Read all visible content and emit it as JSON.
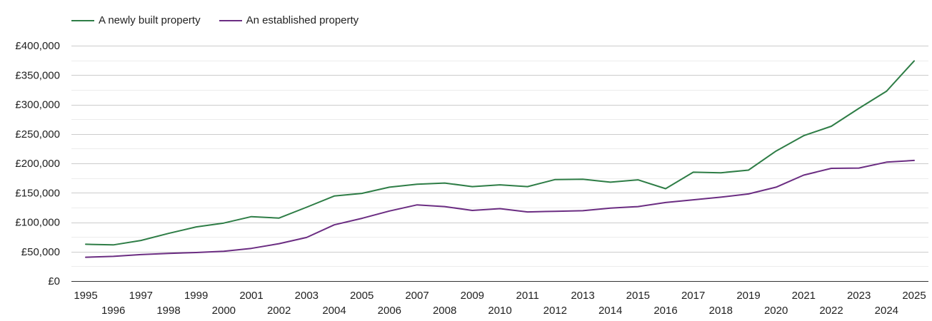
{
  "chart_data": {
    "type": "line",
    "title": "",
    "xlabel": "",
    "ylabel": "",
    "x": [
      1995,
      1996,
      1997,
      1998,
      1999,
      2000,
      2001,
      2002,
      2003,
      2004,
      2005,
      2006,
      2007,
      2008,
      2009,
      2010,
      2011,
      2012,
      2013,
      2014,
      2015,
      2016,
      2017,
      2018,
      2019,
      2020,
      2021,
      2022,
      2023,
      2024,
      2025
    ],
    "x_tick_labels": [
      "1995",
      "1996",
      "1997",
      "1998",
      "1999",
      "2000",
      "2001",
      "2002",
      "2003",
      "2004",
      "2005",
      "2006",
      "2007",
      "2008",
      "2009",
      "2010",
      "2011",
      "2012",
      "2013",
      "2014",
      "2015",
      "2016",
      "2017",
      "2018",
      "2019",
      "2020",
      "2021",
      "2022",
      "2023",
      "2024",
      "2025"
    ],
    "ylim": [
      0,
      400000
    ],
    "y_ticks": [
      0,
      50000,
      100000,
      150000,
      200000,
      250000,
      300000,
      350000,
      400000
    ],
    "y_tick_labels": [
      "£0",
      "£50,000",
      "£100,000",
      "£150,000",
      "£200,000",
      "£250,000",
      "£300,000",
      "£350,000",
      "£400,000"
    ],
    "grid": true,
    "legend_position": "top-left",
    "series": [
      {
        "name": "A newly built property",
        "color": "#2e7d46",
        "values": [
          62500,
          61500,
          69000,
          81000,
          92000,
          98500,
          109500,
          107000,
          125500,
          144500,
          149000,
          159500,
          164500,
          166500,
          160500,
          163500,
          160500,
          172500,
          173000,
          168000,
          172000,
          157000,
          185000,
          184000,
          188500,
          221000,
          247000,
          263000,
          293500,
          322500,
          374000
        ]
      },
      {
        "name": "An established property",
        "color": "#6b2d82",
        "values": [
          40500,
          42000,
          45000,
          47000,
          48500,
          50500,
          55500,
          63500,
          74000,
          95500,
          106500,
          119000,
          129500,
          126500,
          120000,
          123000,
          117500,
          118500,
          119500,
          124000,
          126500,
          133500,
          138000,
          142500,
          148000,
          159500,
          180000,
          191500,
          192000,
          202000,
          205000
        ]
      }
    ]
  }
}
